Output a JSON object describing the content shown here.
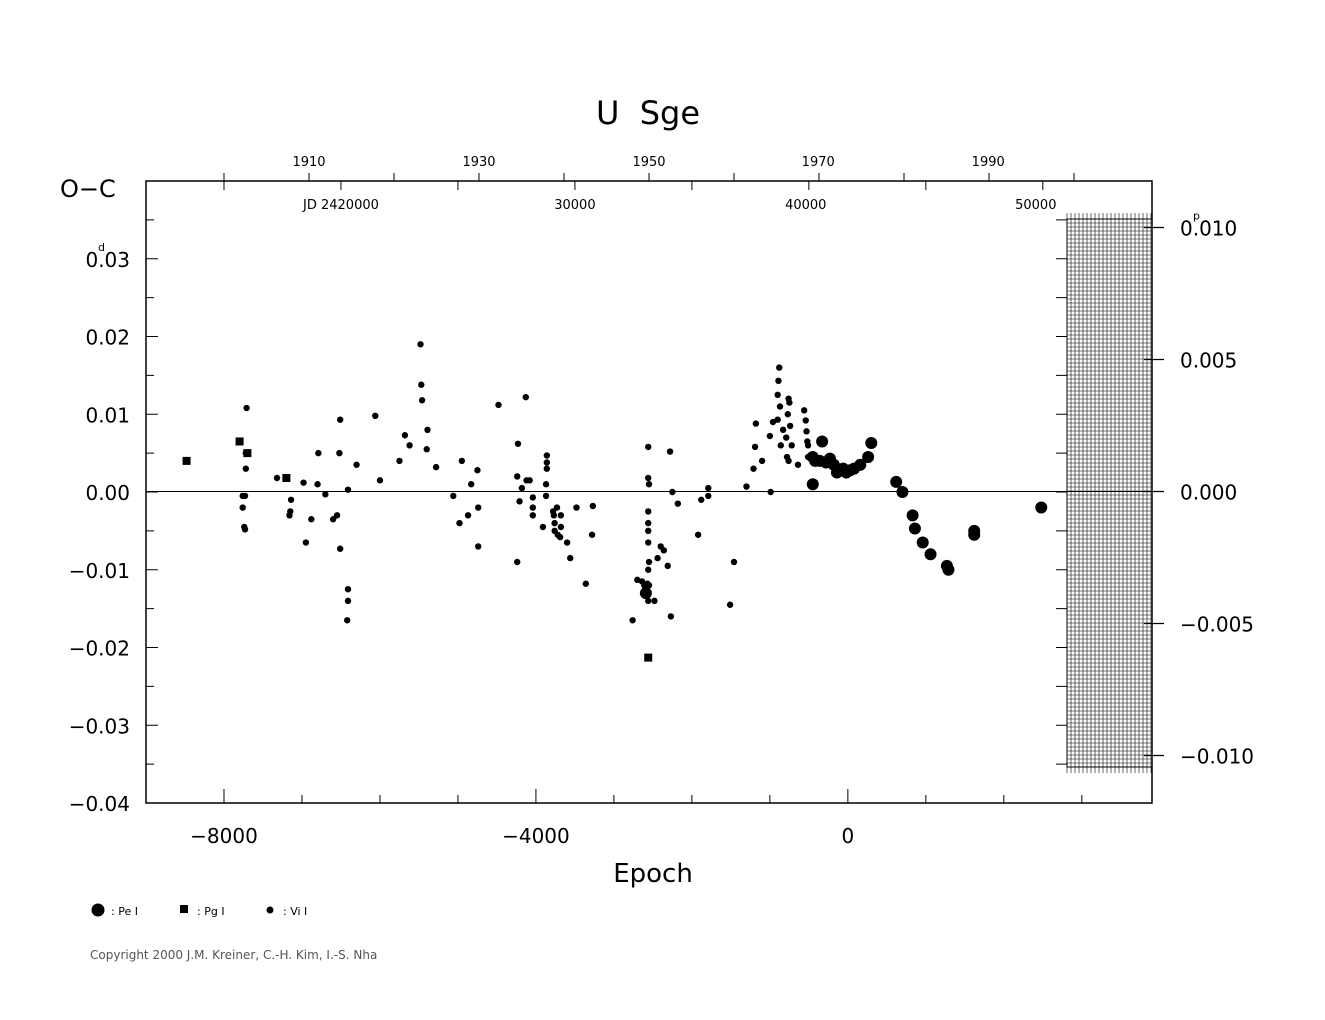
{
  "chart_data": {
    "type": "scatter",
    "title": "U  Sge",
    "ylabel": "O−C",
    "xlabel": "Epoch",
    "xlim": [
      -9000,
      3900
    ],
    "ylim": [
      -0.04,
      0.04
    ],
    "y_ticks": [
      {
        "value": 0.03,
        "label": "0.03",
        "unit_mark": "d"
      },
      {
        "value": 0.02,
        "label": "0.02"
      },
      {
        "value": 0.01,
        "label": "0.01"
      },
      {
        "value": 0.0,
        "label": "0.00"
      },
      {
        "value": -0.01,
        "label": "−0.01"
      },
      {
        "value": -0.02,
        "label": "−0.02"
      },
      {
        "value": -0.03,
        "label": "−0.03"
      },
      {
        "value": -0.04,
        "label": "−0.04"
      }
    ],
    "x_ticks": [
      {
        "value": -8000,
        "label": "−8000"
      },
      {
        "value": -4000,
        "label": "−4000"
      },
      {
        "value": 0,
        "label": "0"
      }
    ],
    "year_ticks": [
      {
        "epoch": -6910,
        "label": "1910"
      },
      {
        "epoch": -4730,
        "label": "1930"
      },
      {
        "epoch": -2550,
        "label": "1950"
      },
      {
        "epoch": -380,
        "label": "1970"
      },
      {
        "epoch": 1800,
        "label": "1990"
      }
    ],
    "jd_ticks": [
      {
        "epoch": -6500,
        "label": "JD  2420000"
      },
      {
        "epoch": -3500,
        "label": "30000"
      },
      {
        "epoch": -540,
        "label": "40000"
      },
      {
        "epoch": 2410,
        "label": "50000"
      }
    ],
    "right_axis": {
      "ticks": [
        {
          "value": 0.01,
          "label": "0.010",
          "unit_mark": "p"
        },
        {
          "value": 0.005,
          "label": "0.005"
        },
        {
          "value": 0.0,
          "label": "0.000"
        },
        {
          "value": -0.005,
          "label": "−0.005"
        },
        {
          "value": -0.01,
          "label": "−0.010"
        }
      ]
    },
    "legend": {
      "placement": "bottom-left",
      "entries": [
        {
          "marker": "large-circle",
          "label": ": Pe  I"
        },
        {
          "marker": "square",
          "label": ": Pg  I"
        },
        {
          "marker": "small-circle",
          "label": ": Vi  I"
        }
      ]
    },
    "series": [
      {
        "name": "Pe I",
        "marker": "large-circle",
        "points": [
          [
            -2590,
            -0.013
          ],
          [
            -450,
            0.0045
          ],
          [
            -420,
            0.004
          ],
          [
            -360,
            0.004
          ],
          [
            -330,
            0.0065
          ],
          [
            -280,
            0.0038
          ],
          [
            -230,
            0.0043
          ],
          [
            -180,
            0.0035
          ],
          [
            -140,
            0.0025
          ],
          [
            -60,
            0.003
          ],
          [
            -20,
            0.0025
          ],
          [
            30,
            0.0028
          ],
          [
            80,
            0.003
          ],
          [
            160,
            0.0035
          ],
          [
            260,
            0.0045
          ],
          [
            300,
            0.0063
          ],
          [
            -450,
            0.001
          ],
          [
            620,
            0.0013
          ],
          [
            700,
            0.0
          ],
          [
            830,
            -0.003
          ],
          [
            860,
            -0.0047
          ],
          [
            960,
            -0.0065
          ],
          [
            1060,
            -0.008
          ],
          [
            1270,
            -0.0095
          ],
          [
            1290,
            -0.01
          ],
          [
            1620,
            -0.005
          ],
          [
            1620,
            -0.0055
          ],
          [
            2480,
            -0.002
          ]
        ]
      },
      {
        "name": "Pg I",
        "marker": "square",
        "points": [
          [
            -8480,
            0.004
          ],
          [
            -7800,
            0.0065
          ],
          [
            -7700,
            0.005
          ],
          [
            -7200,
            0.0018
          ],
          [
            -2560,
            -0.0213
          ]
        ]
      },
      {
        "name": "Vi I",
        "marker": "small-circle",
        "points": [
          [
            -7760,
            -0.002
          ],
          [
            -7760,
            -0.0005
          ],
          [
            -7730,
            -0.0005
          ],
          [
            -7740,
            -0.0045
          ],
          [
            -7730,
            -0.0048
          ],
          [
            -7720,
            0.003
          ],
          [
            -7720,
            0.005
          ],
          [
            -7710,
            0.0108
          ],
          [
            -7320,
            0.0018
          ],
          [
            -7140,
            -0.001
          ],
          [
            -7150,
            -0.0025
          ],
          [
            -7160,
            -0.003
          ],
          [
            -6980,
            0.0012
          ],
          [
            -6950,
            -0.0065
          ],
          [
            -6880,
            -0.0035
          ],
          [
            -6800,
            0.001
          ],
          [
            -6790,
            0.005
          ],
          [
            -6700,
            -0.0003
          ],
          [
            -6600,
            -0.0035
          ],
          [
            -6550,
            -0.003
          ],
          [
            -6510,
            0.0093
          ],
          [
            -6520,
            0.005
          ],
          [
            -6510,
            -0.0073
          ],
          [
            -6410,
            0.0003
          ],
          [
            -6410,
            -0.0125
          ],
          [
            -6410,
            -0.014
          ],
          [
            -6420,
            -0.0165
          ],
          [
            -6300,
            0.0035
          ],
          [
            -6060,
            0.0098
          ],
          [
            -6000,
            0.0015
          ],
          [
            -5750,
            0.004
          ],
          [
            -5680,
            0.0073
          ],
          [
            -5620,
            0.006
          ],
          [
            -5480,
            0.019
          ],
          [
            -5470,
            0.0138
          ],
          [
            -5460,
            0.0118
          ],
          [
            -5390,
            0.008
          ],
          [
            -5400,
            0.0055
          ],
          [
            -5280,
            0.0032
          ],
          [
            -5060,
            -0.0005
          ],
          [
            -4980,
            -0.004
          ],
          [
            -4950,
            0.004
          ],
          [
            -4870,
            -0.003
          ],
          [
            -4830,
            0.001
          ],
          [
            -4750,
            0.0028
          ],
          [
            -4740,
            -0.002
          ],
          [
            -4740,
            -0.007
          ],
          [
            -4480,
            0.0112
          ],
          [
            -4230,
            0.0062
          ],
          [
            -4240,
            0.002
          ],
          [
            -4240,
            -0.009
          ],
          [
            -4210,
            -0.0012
          ],
          [
            -4180,
            0.0005
          ],
          [
            -4130,
            0.0122
          ],
          [
            -4120,
            0.0015
          ],
          [
            -4080,
            0.0015
          ],
          [
            -4040,
            -0.0007
          ],
          [
            -4040,
            -0.002
          ],
          [
            -4040,
            -0.003
          ],
          [
            -3910,
            -0.0045
          ],
          [
            -3860,
            0.0047
          ],
          [
            -3860,
            0.0038
          ],
          [
            -3860,
            0.003
          ],
          [
            -3870,
            0.001
          ],
          [
            -3870,
            -0.0005
          ],
          [
            -3780,
            -0.0025
          ],
          [
            -3770,
            -0.003
          ],
          [
            -3760,
            -0.004
          ],
          [
            -3760,
            -0.005
          ],
          [
            -3730,
            -0.002
          ],
          [
            -3720,
            -0.0055
          ],
          [
            -3690,
            -0.0058
          ],
          [
            -3680,
            -0.0045
          ],
          [
            -3680,
            -0.003
          ],
          [
            -3600,
            -0.0065
          ],
          [
            -3560,
            -0.0085
          ],
          [
            -3480,
            -0.002
          ],
          [
            -3360,
            -0.0118
          ],
          [
            -3280,
            -0.0055
          ],
          [
            -3270,
            -0.0018
          ],
          [
            -2760,
            -0.0165
          ],
          [
            -2700,
            -0.0113
          ],
          [
            -2640,
            -0.0115
          ],
          [
            -2610,
            -0.012
          ],
          [
            -2570,
            -0.0118
          ],
          [
            -2560,
            -0.014
          ],
          [
            -2560,
            0.0058
          ],
          [
            -2560,
            0.0018
          ],
          [
            -2550,
            0.001
          ],
          [
            -2560,
            -0.0025
          ],
          [
            -2560,
            -0.004
          ],
          [
            -2560,
            -0.005
          ],
          [
            -2560,
            -0.0065
          ],
          [
            -2550,
            -0.009
          ],
          [
            -2560,
            -0.01
          ],
          [
            -2550,
            -0.012
          ],
          [
            -2480,
            -0.014
          ],
          [
            -2440,
            -0.0085
          ],
          [
            -2400,
            -0.007
          ],
          [
            -2360,
            -0.0075
          ],
          [
            -2310,
            -0.0095
          ],
          [
            -2280,
            0.0052
          ],
          [
            -2270,
            -0.016
          ],
          [
            -2250,
            0.0
          ],
          [
            -2180,
            -0.0015
          ],
          [
            -1920,
            -0.0055
          ],
          [
            -1880,
            -0.001
          ],
          [
            -1790,
            0.0005
          ],
          [
            -1790,
            -0.0005
          ],
          [
            -1510,
            -0.0145
          ],
          [
            -1460,
            -0.009
          ],
          [
            -1300,
            0.0007
          ],
          [
            -1210,
            0.003
          ],
          [
            -1190,
            0.0058
          ],
          [
            -1180,
            0.0088
          ],
          [
            -1100,
            0.004
          ],
          [
            -1000,
            0.0072
          ],
          [
            -990,
            0.0
          ],
          [
            -960,
            0.009
          ],
          [
            -900,
            0.0093
          ],
          [
            -900,
            0.0125
          ],
          [
            -890,
            0.0143
          ],
          [
            -880,
            0.016
          ],
          [
            -870,
            0.011
          ],
          [
            -860,
            0.006
          ],
          [
            -830,
            0.008
          ],
          [
            -790,
            0.007
          ],
          [
            -780,
            0.0045
          ],
          [
            -760,
            0.004
          ],
          [
            -770,
            0.01
          ],
          [
            -760,
            0.012
          ],
          [
            -750,
            0.0115
          ],
          [
            -740,
            0.0085
          ],
          [
            -720,
            0.006
          ],
          [
            -640,
            0.0035
          ],
          [
            -560,
            0.0105
          ],
          [
            -540,
            0.0092
          ],
          [
            -530,
            0.0078
          ],
          [
            -520,
            0.0065
          ],
          [
            -510,
            0.006
          ],
          [
            -510,
            0.0045
          ]
        ]
      }
    ]
  },
  "footer": {
    "copyright": "Copyright 2000 J.M. Kreiner, C.-H. Kim, I.-S. Nha"
  }
}
